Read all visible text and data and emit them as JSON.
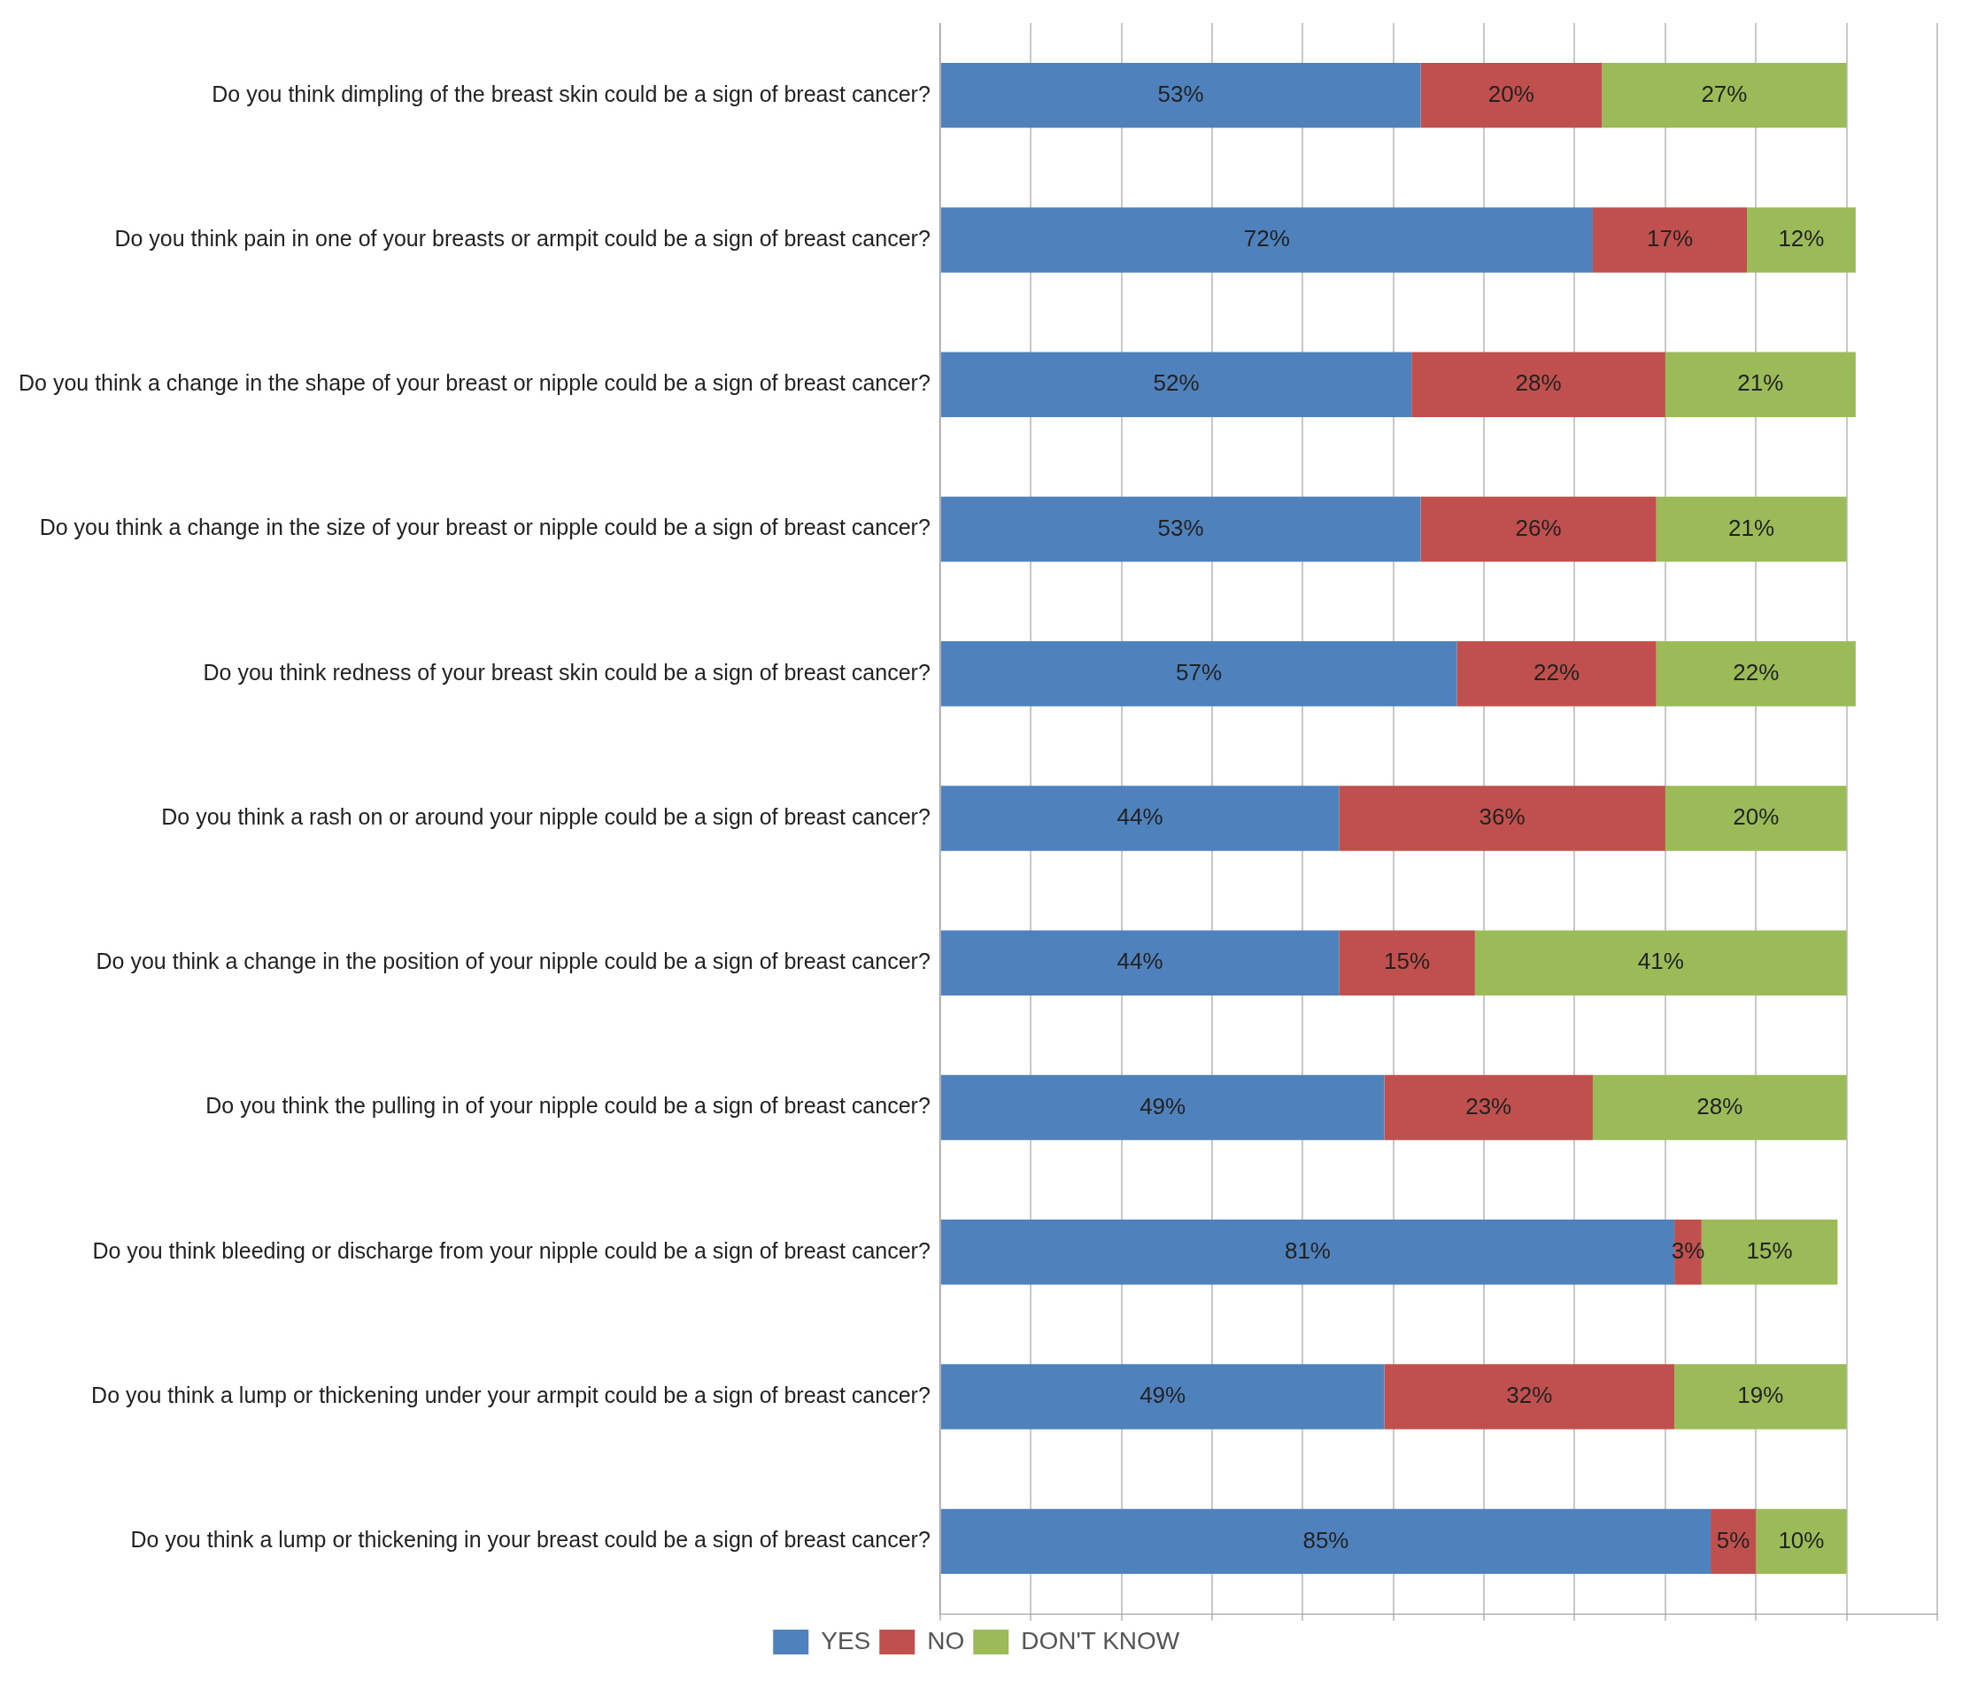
{
  "chart_data": {
    "type": "bar",
    "orientation": "horizontal",
    "stacked": true,
    "grid": "x",
    "tick_labels": "y",
    "legend": "bottom",
    "categories": [
      "Do you think dimpling of the breast skin could be a sign of breast cancer?",
      "Do you think pain in one of your breasts or armpit could be a sign of breast cancer?",
      "Do you think a change in the shape of your breast or nipple could be a sign of breast cancer?",
      "Do you think a change in the size of your breast or nipple could be a sign of breast cancer?",
      "Do you think redness of your breast skin could be a sign of breast cancer?",
      "Do you think a rash on or around your nipple could be a sign of breast cancer?",
      "Do you think a change in the position of your nipple could be a sign of breast cancer?",
      "Do you think the pulling in of your nipple could be a sign of breast cancer?",
      "Do you think bleeding or discharge from your nipple could be a sign of breast cancer?",
      "Do you think a lump or thickening under your armpit could be a sign of breast cancer?",
      "Do you think a lump or thickening in your breast could be a sign of breast cancer?"
    ],
    "series": [
      {
        "name": "YES",
        "color": "#4f81bd",
        "values": [
          53,
          72,
          52,
          53,
          57,
          44,
          44,
          49,
          81,
          49,
          85
        ],
        "value_labels": [
          "53%",
          "72%",
          "52%",
          "53%",
          "57%",
          "44%",
          "44%",
          "49%",
          "81%",
          "49%",
          "85%"
        ]
      },
      {
        "name": "NO",
        "color": "#c0504d",
        "values": [
          20,
          17,
          28,
          26,
          22,
          36,
          15,
          23,
          3,
          32,
          5
        ],
        "value_labels": [
          "20%",
          "17%",
          "28%",
          "26%",
          "22%",
          "36%",
          "15%",
          "23%",
          "3%",
          "32%",
          "5%"
        ]
      },
      {
        "name": "DON'T KNOW",
        "color": "#9bbb59",
        "values": [
          27,
          12,
          21,
          21,
          22,
          20,
          41,
          28,
          15,
          19,
          10
        ],
        "value_labels": [
          "27%",
          "12%",
          "21%",
          "21%",
          "22%",
          "20%",
          "41%",
          "28%",
          "15%",
          "19%",
          "10%"
        ]
      }
    ]
  }
}
